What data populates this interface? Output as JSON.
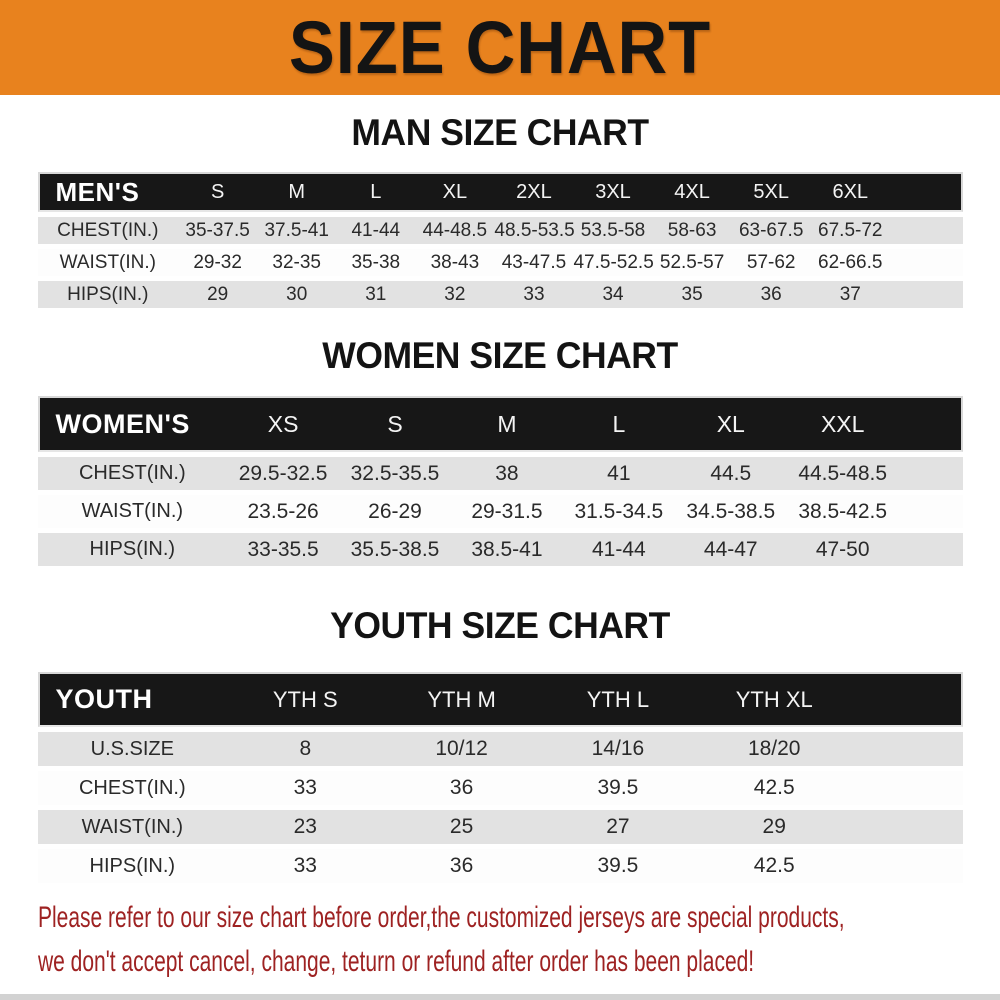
{
  "banner": {
    "title": "SIZE CHART"
  },
  "sections": [
    {
      "title": "MAN SIZE CHART",
      "header_label": "MEN'S",
      "columns": [
        "S",
        "M",
        "L",
        "XL",
        "2XL",
        "3XL",
        "4XL",
        "5XL",
        "6XL"
      ],
      "rows": [
        {
          "label": "CHEST(IN.)",
          "values": [
            "35-37.5",
            "37.5-41",
            "41-44",
            "44-48.5",
            "48.5-53.5",
            "53.5-58",
            "58-63",
            "63-67.5",
            "67.5-72"
          ]
        },
        {
          "label": "WAIST(IN.)",
          "values": [
            "29-32",
            "32-35",
            "35-38",
            "38-43",
            "43-47.5",
            "47.5-52.5",
            "52.5-57",
            "57-62",
            "62-66.5"
          ]
        },
        {
          "label": "HIPS(IN.)",
          "values": [
            "29",
            "30",
            "31",
            "32",
            "33",
            "34",
            "35",
            "36",
            "37"
          ]
        }
      ]
    },
    {
      "title": "WOMEN SIZE CHART",
      "header_label": "WOMEN'S",
      "columns": [
        "XS",
        "S",
        "M",
        "L",
        "XL",
        "XXL"
      ],
      "rows": [
        {
          "label": "CHEST(IN.)",
          "values": [
            "29.5-32.5",
            "32.5-35.5",
            "38",
            "41",
            "44.5",
            "44.5-48.5"
          ]
        },
        {
          "label": "WAIST(IN.)",
          "values": [
            "23.5-26",
            "26-29",
            "29-31.5",
            "31.5-34.5",
            "34.5-38.5",
            "38.5-42.5"
          ]
        },
        {
          "label": "HIPS(IN.)",
          "values": [
            "33-35.5",
            "35.5-38.5",
            "38.5-41",
            "41-44",
            "44-47",
            "47-50"
          ]
        }
      ]
    },
    {
      "title": "YOUTH SIZE CHART",
      "header_label": "YOUTH",
      "columns": [
        "YTH S",
        "YTH M",
        "YTH L",
        "YTH XL"
      ],
      "rows": [
        {
          "label": "U.S.SIZE",
          "values": [
            "8",
            "10/12",
            "14/16",
            "18/20"
          ]
        },
        {
          "label": "CHEST(IN.)",
          "values": [
            "33",
            "36",
            "39.5",
            "42.5"
          ]
        },
        {
          "label": "WAIST(IN.)",
          "values": [
            "23",
            "25",
            "27",
            "29"
          ]
        },
        {
          "label": "HIPS(IN.)",
          "values": [
            "33",
            "36",
            "39.5",
            "42.5"
          ]
        }
      ]
    }
  ],
  "footer": {
    "line1": "Please refer to our size chart before order,the customized jerseys are special products,",
    "line2": "we don't accept cancel, change, teturn or refund after order has been placed!"
  },
  "colors": {
    "banner_bg": "#E8821E",
    "table_header_bg": "#171717",
    "row_shade": "#E2E2E2",
    "row_plain": "#FDFDFD",
    "notice_text": "#9E2222"
  }
}
